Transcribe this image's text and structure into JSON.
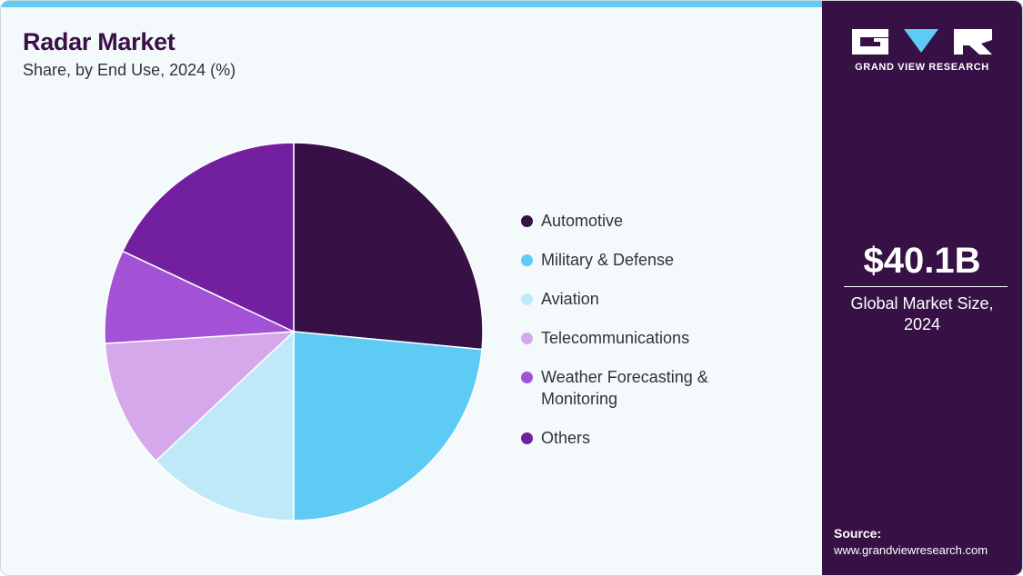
{
  "header": {
    "title": "Radar Market",
    "subtitle": "Share, by End Use, 2024 (%)"
  },
  "chart_data": {
    "type": "pie",
    "title": "Radar Market",
    "subtitle": "Share, by End Use, 2024 (%)",
    "categories": [
      "Automotive",
      "Military & Defense",
      "Aviation",
      "Telecommunications",
      "Weather Forecasting & Monitoring",
      "Others"
    ],
    "values": [
      26.5,
      23.5,
      13.0,
      11.0,
      8.0,
      18.0
    ],
    "colors": [
      "#371145",
      "#5ecbf5",
      "#bfe9f9",
      "#d4a8ea",
      "#a352d6",
      "#7220a0"
    ],
    "legend_position": "right",
    "start": "12 o'clock, clockwise"
  },
  "legend": {
    "items": [
      {
        "label": "Automotive",
        "color": "#371145"
      },
      {
        "label": "Military & Defense",
        "color": "#5ecbf5"
      },
      {
        "label": "Aviation",
        "color": "#bfe9f9"
      },
      {
        "label": "Telecommunications",
        "color": "#d4a8ea"
      },
      {
        "label": "Weather Forecasting & Monitoring",
        "line1": "Weather Forecasting &",
        "line2": "Monitoring",
        "color": "#a352d6"
      },
      {
        "label": "Others",
        "color": "#7220a0"
      }
    ]
  },
  "sidebar": {
    "brand": "GRAND VIEW RESEARCH",
    "market_size": "$40.1B",
    "market_size_label": "Global Market Size, 2024",
    "source_label": "Source:",
    "source_url": "www.grandviewresearch.com",
    "background_color": "#371145"
  }
}
